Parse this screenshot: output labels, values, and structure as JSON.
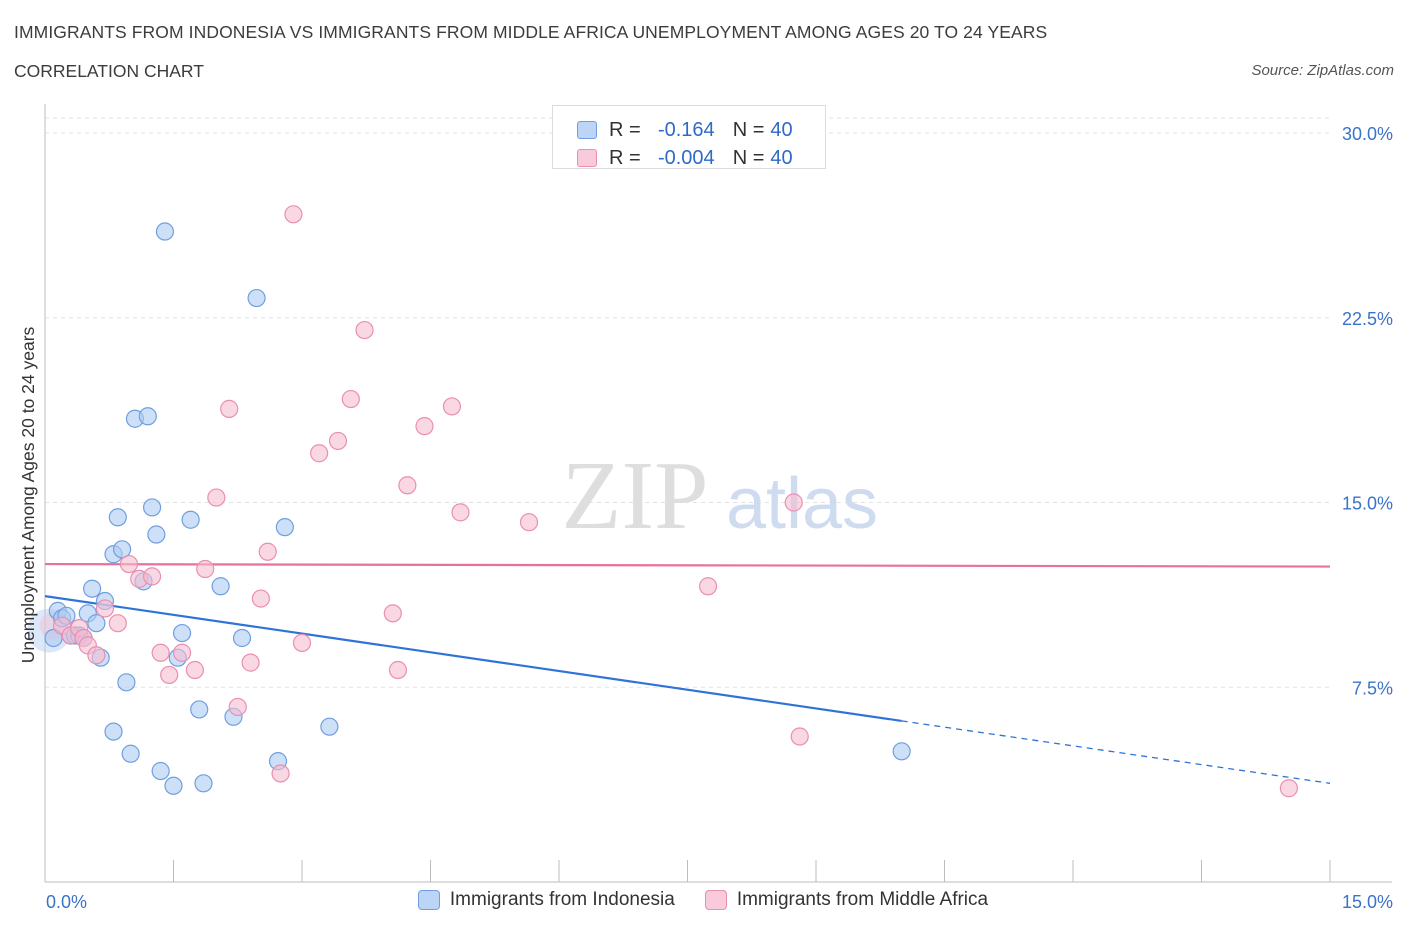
{
  "header": {
    "title": "IMMIGRANTS FROM INDONESIA VS IMMIGRANTS FROM MIDDLE AFRICA UNEMPLOYMENT AMONG AGES 20 TO 24 YEARS",
    "subtitle": "CORRELATION CHART",
    "source": "Source: ZipAtlas.com"
  },
  "watermark": {
    "zip": "ZIP",
    "atlas": "atlas"
  },
  "colors": {
    "blue_fill": "#aecbf2",
    "blue_stroke": "#6f9fe0",
    "blue_line": "#2f73d8",
    "pink_fill": "#f5bdd0",
    "pink_stroke": "#ea8fb0",
    "pink_line": "#e8709a",
    "axis_text": "#3b73c8"
  },
  "stats": {
    "rows": [
      {
        "r_label": "R =",
        "r_value": "-0.164",
        "n_label": "N =",
        "n_value": "40"
      },
      {
        "r_label": "R =",
        "r_value": "-0.004",
        "n_label": "N =",
        "n_value": "40"
      }
    ]
  },
  "legend": {
    "indonesia": "Immigrants from Indonesia",
    "middle_africa": "Immigrants from Middle Africa"
  },
  "chart_data": {
    "type": "scatter",
    "title": "IMMIGRANTS FROM INDONESIA VS IMMIGRANTS FROM MIDDLE AFRICA UNEMPLOYMENT AMONG AGES 20 TO 24 YEARS",
    "xlabel": "",
    "ylabel": "Unemployment Among Ages 20 to 24 years",
    "xlim": [
      0,
      15
    ],
    "ylim": [
      0,
      30
    ],
    "x_tick_labels": {
      "left": "0.0%",
      "right": "15.0%"
    },
    "y_ticks": [
      {
        "value": 7.5,
        "label": "7.5%"
      },
      {
        "value": 15,
        "label": "15.0%"
      },
      {
        "value": 22.5,
        "label": "22.5%"
      },
      {
        "value": 30,
        "label": "30.0%"
      }
    ],
    "grid": true,
    "legend_position": "bottom",
    "series": [
      {
        "name": "Immigrants from Indonesia",
        "color": "blue",
        "r": -0.164,
        "n": 40,
        "trend": {
          "x0": 0,
          "y0": 11.2,
          "x1": 15,
          "y1": 3.6,
          "solid_until_x": 10
        },
        "points": [
          [
            0.1,
            9.5
          ],
          [
            0.15,
            10.6
          ],
          [
            0.2,
            10.3
          ],
          [
            0.3,
            9.6
          ],
          [
            0.35,
            9.6
          ],
          [
            0.4,
            9.6
          ],
          [
            0.5,
            10.5
          ],
          [
            0.55,
            11.5
          ],
          [
            0.6,
            10.1
          ],
          [
            0.65,
            8.7
          ],
          [
            0.7,
            11.0
          ],
          [
            0.8,
            12.9
          ],
          [
            0.85,
            14.4
          ],
          [
            0.9,
            13.1
          ],
          [
            0.95,
            7.7
          ],
          [
            0.8,
            5.7
          ],
          [
            1.0,
            4.8
          ],
          [
            1.05,
            18.4
          ],
          [
            1.2,
            18.5
          ],
          [
            1.25,
            14.8
          ],
          [
            1.3,
            13.7
          ],
          [
            1.15,
            11.8
          ],
          [
            1.35,
            4.1
          ],
          [
            1.4,
            26.0
          ],
          [
            1.5,
            3.5
          ],
          [
            1.55,
            8.7
          ],
          [
            1.6,
            9.7
          ],
          [
            1.7,
            14.3
          ],
          [
            1.8,
            6.6
          ],
          [
            1.85,
            3.6
          ],
          [
            2.05,
            11.6
          ],
          [
            2.2,
            6.3
          ],
          [
            2.3,
            9.5
          ],
          [
            2.47,
            23.3
          ],
          [
            2.8,
            14.0
          ],
          [
            2.72,
            4.5
          ],
          [
            3.32,
            5.9
          ],
          [
            10.0,
            4.9
          ],
          [
            0.25,
            10.4
          ],
          [
            0.45,
            9.5
          ]
        ]
      },
      {
        "name": "Immigrants from Middle Africa",
        "color": "pink",
        "r": -0.004,
        "n": 40,
        "trend": {
          "x0": 0,
          "y0": 12.5,
          "x1": 15,
          "y1": 12.4,
          "solid_until_x": 15
        },
        "points": [
          [
            0.2,
            10.0
          ],
          [
            0.3,
            9.6
          ],
          [
            0.4,
            9.9
          ],
          [
            0.45,
            9.5
          ],
          [
            0.5,
            9.2
          ],
          [
            0.6,
            8.8
          ],
          [
            0.7,
            10.7
          ],
          [
            0.85,
            10.1
          ],
          [
            0.98,
            12.5
          ],
          [
            1.1,
            11.9
          ],
          [
            1.25,
            12.0
          ],
          [
            1.35,
            8.9
          ],
          [
            1.45,
            8.0
          ],
          [
            1.6,
            8.9
          ],
          [
            1.75,
            8.2
          ],
          [
            1.87,
            12.3
          ],
          [
            2.0,
            15.2
          ],
          [
            2.15,
            18.8
          ],
          [
            2.25,
            6.7
          ],
          [
            2.4,
            8.5
          ],
          [
            2.52,
            11.1
          ],
          [
            2.6,
            13.0
          ],
          [
            2.75,
            4.0
          ],
          [
            2.9,
            26.7
          ],
          [
            3.0,
            9.3
          ],
          [
            3.2,
            17.0
          ],
          [
            3.42,
            17.5
          ],
          [
            3.57,
            19.2
          ],
          [
            3.73,
            22.0
          ],
          [
            4.12,
            8.2
          ],
          [
            4.06,
            10.5
          ],
          [
            4.23,
            15.7
          ],
          [
            4.43,
            18.1
          ],
          [
            4.75,
            18.9
          ],
          [
            4.85,
            14.6
          ],
          [
            5.65,
            14.2
          ],
          [
            7.74,
            11.6
          ],
          [
            8.74,
            15.0
          ],
          [
            8.81,
            5.5
          ],
          [
            14.52,
            3.4
          ]
        ]
      }
    ]
  }
}
